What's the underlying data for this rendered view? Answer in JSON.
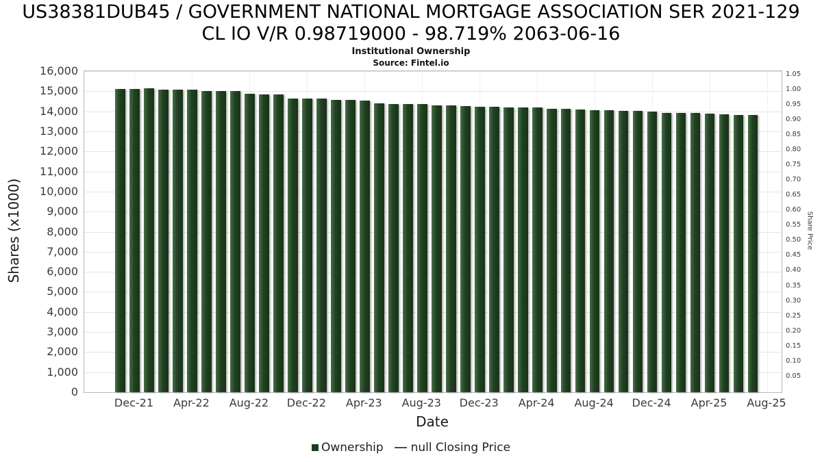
{
  "header": {
    "title_line1": "US38381DUB45 / GOVERNMENT NATIONAL MORTGAGE ASSOCIATION SER 2021-129",
    "title_line2": "CL IO V/R 0.98719000 - 98.719% 2063-06-16",
    "subtitle": "Institutional Ownership",
    "source": "Source: Fintel.io"
  },
  "chart_data": {
    "type": "bar",
    "title": "US38381DUB45 / GOVERNMENT NATIONAL MORTGAGE ASSOCIATION SER 2021-129 CL IO V/R 0.98719000 - 98.719% 2063-06-16",
    "subtitle": "Institutional Ownership",
    "source": "Source: Fintel.io",
    "xlabel": "Date",
    "ylabel_left": "Shares (x1000)",
    "ylabel_right": "Share Price",
    "grid": true,
    "legend_position": "bottom",
    "bar_color": "#1e3c1f",
    "line_color": "#4a4a4a",
    "ylim_left": [
      0,
      17000
    ],
    "ylim_right": [
      0,
      1.0625
    ],
    "x": [
      "Nov-21",
      "Dec-21",
      "Jan-22",
      "Feb-22",
      "Mar-22",
      "Apr-22",
      "May-22",
      "Jun-22",
      "Jul-22",
      "Aug-22",
      "Sep-22",
      "Oct-22",
      "Nov-22",
      "Dec-22",
      "Jan-23",
      "Feb-23",
      "Mar-23",
      "Apr-23",
      "May-23",
      "Jun-23",
      "Jul-23",
      "Aug-23",
      "Sep-23",
      "Oct-23",
      "Nov-23",
      "Dec-23",
      "Jan-24",
      "Feb-24",
      "Mar-24",
      "Apr-24",
      "May-24",
      "Jun-24",
      "Jul-24",
      "Aug-24",
      "Sep-24",
      "Oct-24",
      "Nov-24",
      "Dec-24",
      "Jan-25",
      "Feb-25",
      "Mar-25",
      "Apr-25",
      "May-25",
      "Jun-25",
      "Jul-25"
    ],
    "series": [
      {
        "name": "Ownership",
        "values": [
          16060,
          16075,
          16080,
          16030,
          16020,
          16010,
          15950,
          15945,
          15940,
          15790,
          15780,
          15770,
          15560,
          15545,
          15555,
          15480,
          15470,
          15455,
          15290,
          15270,
          15265,
          15245,
          15190,
          15195,
          15140,
          15130,
          15115,
          15095,
          15080,
          15065,
          15010,
          14995,
          14960,
          14950,
          14940,
          14905,
          14890,
          14870,
          14795,
          14785,
          14775,
          14765,
          14710,
          14695,
          14685
        ]
      }
    ],
    "line_series": {
      "name": "null Closing Price",
      "values": []
    },
    "y_ticks_left": [
      "0",
      "1,000",
      "2,000",
      "3,000",
      "4,000",
      "5,000",
      "6,000",
      "7,000",
      "8,000",
      "9,000",
      "10,000",
      "11,000",
      "12,000",
      "13,000",
      "14,000",
      "15,000",
      "16,000"
    ],
    "y_ticks_right": [
      "0.05",
      "0.10",
      "0.15",
      "0.20",
      "0.25",
      "0.30",
      "0.35",
      "0.40",
      "0.45",
      "0.50",
      "0.55",
      "0.60",
      "0.65",
      "0.70",
      "0.75",
      "0.80",
      "0.85",
      "0.90",
      "0.95",
      "1.00",
      "1.05"
    ],
    "x_ticks": [
      "Dec-21",
      "Apr-22",
      "Aug-22",
      "Dec-22",
      "Apr-23",
      "Aug-23",
      "Dec-23",
      "Apr-24",
      "Aug-24",
      "Dec-24",
      "Apr-25",
      "Aug-25"
    ],
    "legend": {
      "bar_label": "Ownership",
      "line_label": "null Closing Price"
    }
  }
}
